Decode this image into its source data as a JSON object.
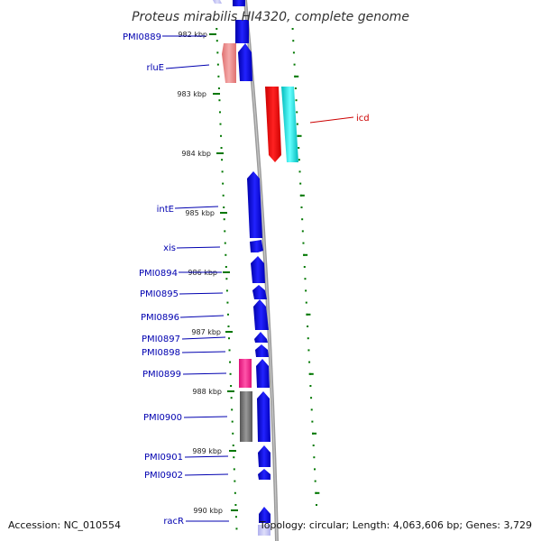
{
  "title": "Proteus mirabilis HI4320, complete genome",
  "footer": {
    "accession": "Accession: NC_010554",
    "summary": "Topology: circular; Length: 4,063,606 bp; Genes: 3,729"
  },
  "colors": {
    "cds": "#0000dd",
    "rRNA_tRNA": "#ee3388",
    "pseudo": "#666666",
    "reverse_light": "#e88888",
    "red_gene": "#ee0000",
    "cyan_gene": "#00dddd",
    "tick": "#007700",
    "backbone": "#888888",
    "label_blue": "#0000b0",
    "label_red": "#cc0000"
  },
  "kbp_ticks": [
    {
      "label": "982 kbp"
    },
    {
      "label": "983 kbp"
    },
    {
      "label": "984 kbp"
    },
    {
      "label": "985 kbp"
    },
    {
      "label": "986 kbp"
    },
    {
      "label": "987 kbp"
    },
    {
      "label": "988 kbp"
    },
    {
      "label": "989 kbp"
    },
    {
      "label": "990 kbp"
    }
  ],
  "genes": [
    {
      "name": "PMI0889"
    },
    {
      "name": "rluE"
    },
    {
      "name": "icd"
    },
    {
      "name": "intE"
    },
    {
      "name": "xis"
    },
    {
      "name": "PMI0894"
    },
    {
      "name": "PMI0895"
    },
    {
      "name": "PMI0896"
    },
    {
      "name": "PMI0897"
    },
    {
      "name": "PMI0898"
    },
    {
      "name": "PMI0899"
    },
    {
      "name": "PMI0900"
    },
    {
      "name": "PMI0901"
    },
    {
      "name": "PMI0902"
    },
    {
      "name": "racR"
    }
  ]
}
